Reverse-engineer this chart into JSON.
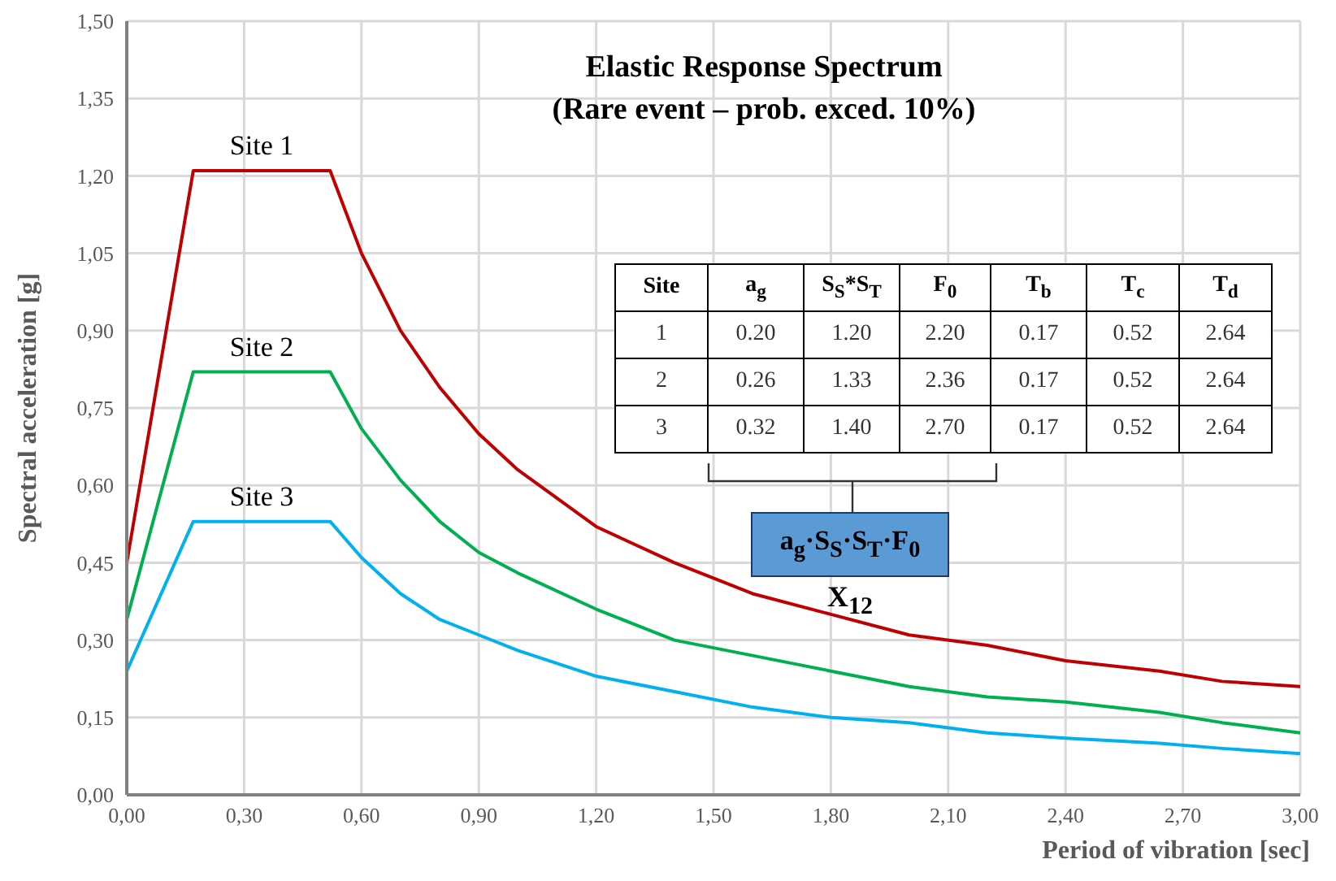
{
  "chart_data": {
    "type": "line",
    "title": "Elastic Response Spectrum",
    "subtitle": "(Rare event – prob. exced. 10%)",
    "xlabel": "Period of vibration [sec]",
    "ylabel": "Spectral acceleration [g]",
    "x": [
      0,
      0.17,
      0.52,
      0.6,
      0.7,
      0.8,
      0.9,
      1.0,
      1.2,
      1.4,
      1.6,
      1.8,
      2.0,
      2.2,
      2.4,
      2.64,
      2.8,
      3.0
    ],
    "series": [
      {
        "name": "Site 1",
        "color": "#c00000",
        "values": [
          0.45,
          1.21,
          1.21,
          1.05,
          0.9,
          0.79,
          0.7,
          0.63,
          0.52,
          0.45,
          0.39,
          0.35,
          0.31,
          0.29,
          0.26,
          0.24,
          0.22,
          0.21
        ]
      },
      {
        "name": "Site 2",
        "color": "#00b050",
        "values": [
          0.34,
          0.82,
          0.82,
          0.71,
          0.61,
          0.53,
          0.47,
          0.43,
          0.36,
          0.3,
          0.27,
          0.24,
          0.21,
          0.19,
          0.18,
          0.16,
          0.14,
          0.12
        ]
      },
      {
        "name": "Site 3",
        "color": "#00b0f0",
        "values": [
          0.24,
          0.53,
          0.53,
          0.46,
          0.39,
          0.34,
          0.31,
          0.28,
          0.23,
          0.2,
          0.17,
          0.15,
          0.14,
          0.12,
          0.11,
          0.1,
          0.09,
          0.08
        ]
      }
    ],
    "xlim": [
      0,
      3
    ],
    "ylim": [
      0,
      1.5
    ],
    "xticks": [
      {
        "value": 0,
        "label": "0,00"
      },
      {
        "value": 0.3,
        "label": "0,30"
      },
      {
        "value": 0.6,
        "label": "0,60"
      },
      {
        "value": 0.9,
        "label": "0,90"
      },
      {
        "value": 1.2,
        "label": "1,20"
      },
      {
        "value": 1.5,
        "label": "1,50"
      },
      {
        "value": 1.8,
        "label": "1,80"
      },
      {
        "value": 2.1,
        "label": "2,10"
      },
      {
        "value": 2.4,
        "label": "2,40"
      },
      {
        "value": 2.7,
        "label": "2,70"
      },
      {
        "value": 3.0,
        "label": "3,00"
      }
    ],
    "yticks": [
      {
        "value": 0,
        "label": "0,00"
      },
      {
        "value": 0.15,
        "label": "0,15"
      },
      {
        "value": 0.3,
        "label": "0,30"
      },
      {
        "value": 0.45,
        "label": "0,45"
      },
      {
        "value": 0.6,
        "label": "0,60"
      },
      {
        "value": 0.75,
        "label": "0,75"
      },
      {
        "value": 0.9,
        "label": "0,90"
      },
      {
        "value": 1.05,
        "label": "1,05"
      },
      {
        "value": 1.2,
        "label": "1,20"
      },
      {
        "value": 1.35,
        "label": "1,35"
      },
      {
        "value": 1.5,
        "label": "1,50"
      }
    ],
    "grid": true,
    "marker": "none",
    "line_style": "solid",
    "annotations": [
      "Site",
      "a$_{g}$",
      "S$_{S}$*S$_{T}$",
      "F$_{0}$",
      "T$_{b}$",
      "T$_{c}$",
      "T$_{d}$",
      "1",
      "0.20",
      "1.20",
      "2.20",
      "0.17",
      "0.52",
      "2.64",
      "2",
      "0.26",
      "1.33",
      "2.36",
      "0.17",
      "0.52",
      "2.64",
      "3",
      "0.32",
      "1.40",
      "2.70",
      "0.17",
      "0.52",
      "2.64",
      "a$_{g}$·S$_{S}$·S$_{T}$·F$_{0}$",
      "X$_{12}$"
    ]
  }
}
